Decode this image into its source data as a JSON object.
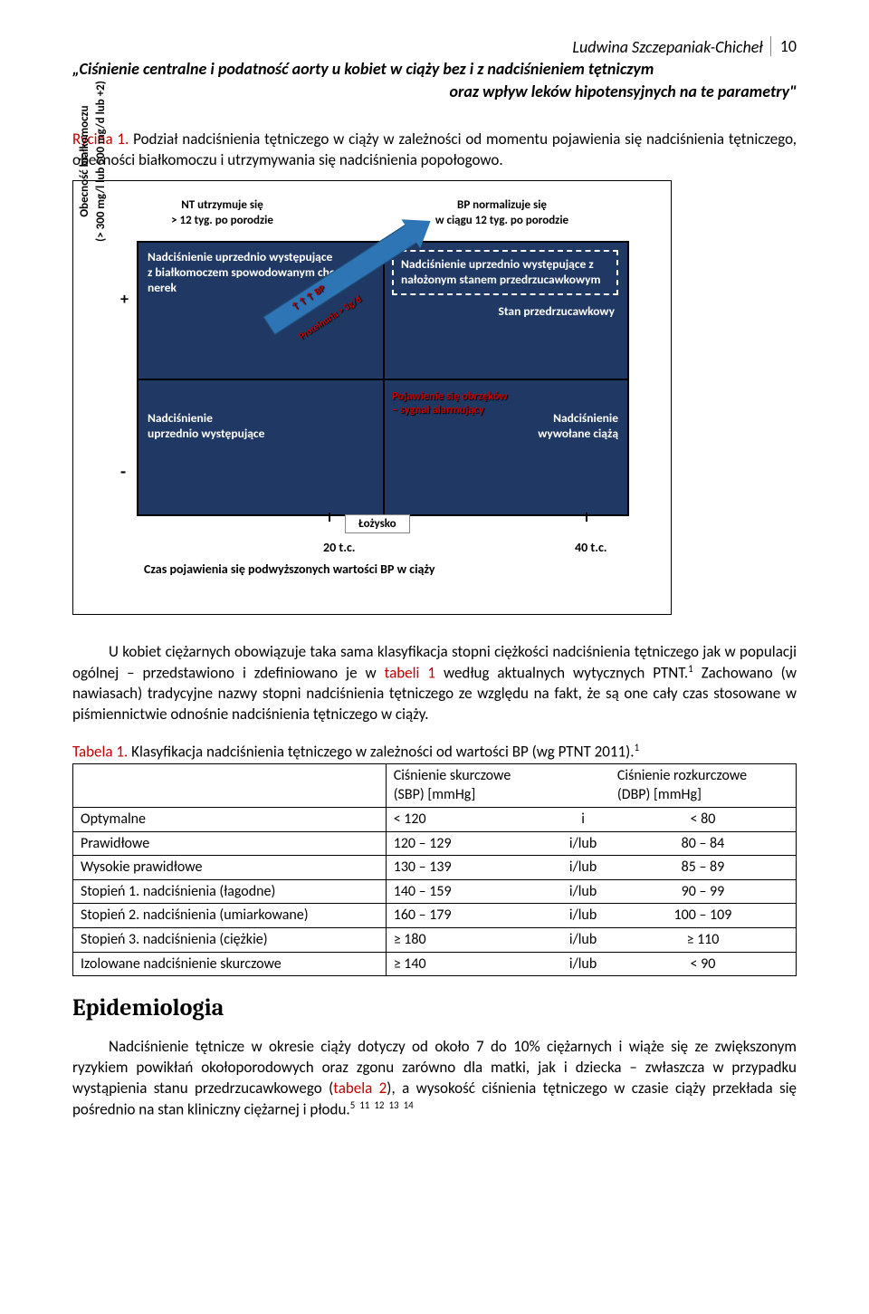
{
  "header": {
    "author": "Ludwina Szczepaniak-Chicheł",
    "page": "10",
    "title_l1": "„Ciśnienie centralne i podatność aorty u kobiet w ciąży bez i z nadciśnieniem tętniczym",
    "title_l2": "oraz wpływ leków hipotensyjnych na te parametry\""
  },
  "fig": {
    "label": "Rycina 1.",
    "caption": " Podział nadciśnienia tętniczego w ciąży w zależności od momentu pojawienia się nadciśnienia tętniczego, obecności białkomoczu i utrzymywania się nadciśnienia popołogowo.",
    "top_left": "NT utrzymuje się\n> 12 tyg. po porodzie",
    "top_right": "BP normalizuje się\nw ciągu 12 tyg. po porodzie",
    "yaxis": "Obecność białkomoczu\n(> 300 mg/l lub 500 mg/d lub +2)",
    "q1": "Nadciśnienie uprzednio występujące\nz białkomoczem spowodowanym chorobą nerek",
    "q2_box": "Nadciśnienie uprzednio występujące z nałożonym stanem przedrzucawkowym",
    "q2_stan": "Stan przedrzucawkowy",
    "q3": "Nadciśnienie\nuprzednio występujące",
    "q4": "Nadciśnienie\nwywołane ciążą",
    "arrow_bp": "↑↑↑ BP",
    "arrow_prot": "Proteinuria > 3g/d",
    "alarm_l1": "Pojawienie się obrzęków",
    "alarm_l2": "– sygnał alarmujący",
    "lozysko": "Łożysko",
    "t20": "20 t.c.",
    "t40": "40 t.c.",
    "xaxis": "Czas pojawienia się podwyższonych wartości BP w ciąży"
  },
  "para1_a": "U kobiet ciężarnych obowiązuje taka sama klasyfikacja stopni ciężkości nadciśnienia tętniczego jak w populacji ogólnej – przedstawiono i zdefiniowano je w ",
  "para1_red": "tabeli 1",
  "para1_b": " według aktualnych wytycznych PTNT.",
  "para1_sup": "1",
  "para1_c": " Zachowano (w nawiasach) tradycyjne nazwy stopni nadciśnienia tętniczego ze względu na fakt, że są one cały czas stosowane w piśmiennictwie odnośnie nadciśnienia tętniczego w ciąży.",
  "tbl": {
    "label": "Tabela 1.",
    "caption": " Klasyfikacja nadciśnienia tętniczego w zależności od wartości BP (wg PTNT 2011).",
    "sup": "1",
    "h_sbp": "Ciśnienie skurczowe\n(SBP) [mmHg]",
    "h_dbp": "Ciśnienie rozkurczowe\n(DBP) [mmHg]",
    "r": [
      {
        "n": "Optymalne",
        "s": "< 120",
        "op": "i",
        "d": "< 80"
      },
      {
        "n": "Prawidłowe",
        "s": "120 – 129",
        "op": "i/lub",
        "d": "80 – 84"
      },
      {
        "n": "Wysokie prawidłowe",
        "s": "130 – 139",
        "op": "i/lub",
        "d": "85 – 89"
      },
      {
        "n": "Stopień 1. nadciśnienia (łagodne)",
        "s": "140 – 159",
        "op": "i/lub",
        "d": "90 – 99"
      },
      {
        "n": "Stopień 2. nadciśnienia (umiarkowane)",
        "s": "160 – 179",
        "op": "i/lub",
        "d": "100 – 109"
      },
      {
        "n": "Stopień 3. nadciśnienia (ciężkie)",
        "s": "≥ 180",
        "op": "i/lub",
        "d": "≥ 110"
      },
      {
        "n": "Izolowane nadciśnienie skurczowe",
        "s": "≥ 140",
        "op": "i/lub",
        "d": "< 90"
      }
    ]
  },
  "epi": {
    "h": "Epidemiologia",
    "p_a": "Nadciśnienie tętnicze w okresie ciąży dotyczy od około 7 do 10% ciężarnych i wiąże się ze zwiększonym ryzykiem powikłań okołoporodowych oraz zgonu zarówno dla matki, jak i dziecka – zwłaszcza w przypadku wystąpienia stanu przedrzucawkowego (",
    "p_red": "tabela 2",
    "p_b": "), a wysokość ciśnienia tętniczego w czasie ciąży przekłada się pośrednio na stan kliniczny ciężarnej i płodu.",
    "sup": "5  11  12  13  14"
  }
}
